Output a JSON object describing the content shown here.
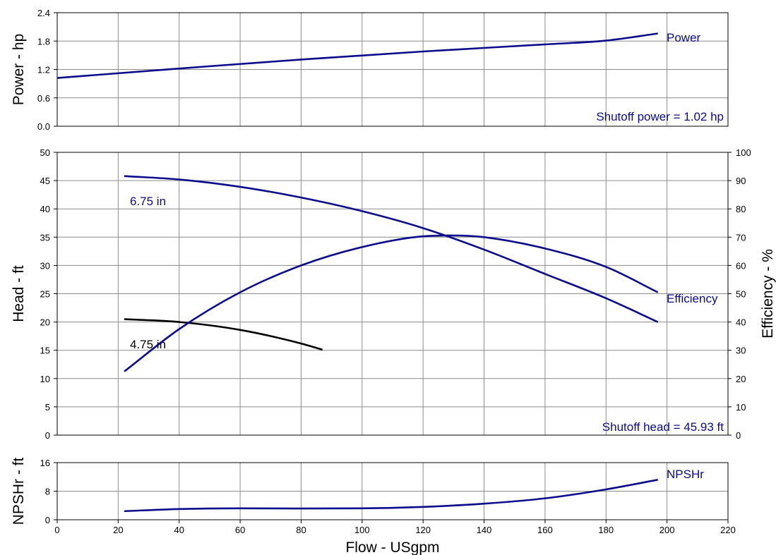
{
  "colors": {
    "primary": "#0b0b8c",
    "secondary": "#000000",
    "grid": "#8c8c8c",
    "frame": "#000000"
  },
  "chart_data": [
    {
      "id": "power",
      "type": "line",
      "ylabel": "Power - hp",
      "ylim": [
        0,
        2.4
      ],
      "xlim": [
        0,
        220
      ],
      "yticks": [
        "0.0",
        "0.6",
        "1.2",
        "1.8",
        "2.4"
      ],
      "grid": true,
      "series": [
        {
          "name": "Power",
          "color_key": "primary",
          "x": [
            0,
            40,
            80,
            120,
            160,
            180,
            197
          ],
          "y": [
            1.02,
            1.22,
            1.41,
            1.58,
            1.73,
            1.81,
            1.96
          ]
        }
      ],
      "annotations": [
        {
          "text": "Shutoff power = 1.02 hp",
          "key": "shutoff"
        }
      ]
    },
    {
      "id": "head",
      "type": "line",
      "ylabel": "Head - ft",
      "y2label": "Efficiency - %",
      "ylim": [
        0,
        50
      ],
      "y2lim": [
        0,
        100
      ],
      "xlim": [
        0,
        220
      ],
      "yticks": [
        "0",
        "5",
        "10",
        "15",
        "20",
        "25",
        "30",
        "35",
        "40",
        "45",
        "50"
      ],
      "y2ticks": [
        "0",
        "10",
        "20",
        "30",
        "40",
        "50",
        "60",
        "70",
        "80",
        "90",
        "100"
      ],
      "grid": true,
      "series": [
        {
          "name": "6.75 in",
          "axis": "y",
          "color_key": "primary",
          "x": [
            22,
            40,
            60,
            80,
            100,
            120,
            140,
            160,
            180,
            197
          ],
          "y": [
            45.8,
            45.2,
            43.9,
            42.0,
            39.6,
            36.6,
            32.8,
            28.5,
            24.2,
            20.0
          ]
        },
        {
          "name": "4.75 in",
          "axis": "y",
          "color_key": "secondary",
          "x": [
            22,
            40,
            60,
            80,
            87
          ],
          "y": [
            20.5,
            20.0,
            18.6,
            16.2,
            15.1
          ]
        },
        {
          "name": "Efficiency",
          "axis": "y2",
          "color_key": "primary",
          "x": [
            22,
            40,
            60,
            80,
            100,
            120,
            130,
            140,
            160,
            180,
            197
          ],
          "y": [
            22.5,
            37.5,
            50.5,
            60.0,
            66.5,
            70.3,
            70.6,
            70.0,
            66.0,
            59.5,
            50.5
          ]
        }
      ],
      "annotations": [
        {
          "text": "Shutoff head = 45.93 ft",
          "key": "shutoff"
        }
      ]
    },
    {
      "id": "npshr",
      "type": "line",
      "ylabel": "NPSHr - ft",
      "xlabel": "Flow - USgpm",
      "ylim": [
        0,
        16
      ],
      "xlim": [
        0,
        220
      ],
      "yticks": [
        "0",
        "8",
        "16"
      ],
      "xticks": [
        "0",
        "20",
        "40",
        "60",
        "80",
        "100",
        "120",
        "140",
        "160",
        "180",
        "200",
        "220"
      ],
      "grid": true,
      "series": [
        {
          "name": "NPSHr",
          "color_key": "primary",
          "x": [
            22,
            40,
            60,
            80,
            100,
            120,
            140,
            160,
            180,
            197
          ],
          "y": [
            2.4,
            3.0,
            3.2,
            3.15,
            3.2,
            3.6,
            4.5,
            6.0,
            8.5,
            11.2
          ]
        }
      ]
    }
  ]
}
